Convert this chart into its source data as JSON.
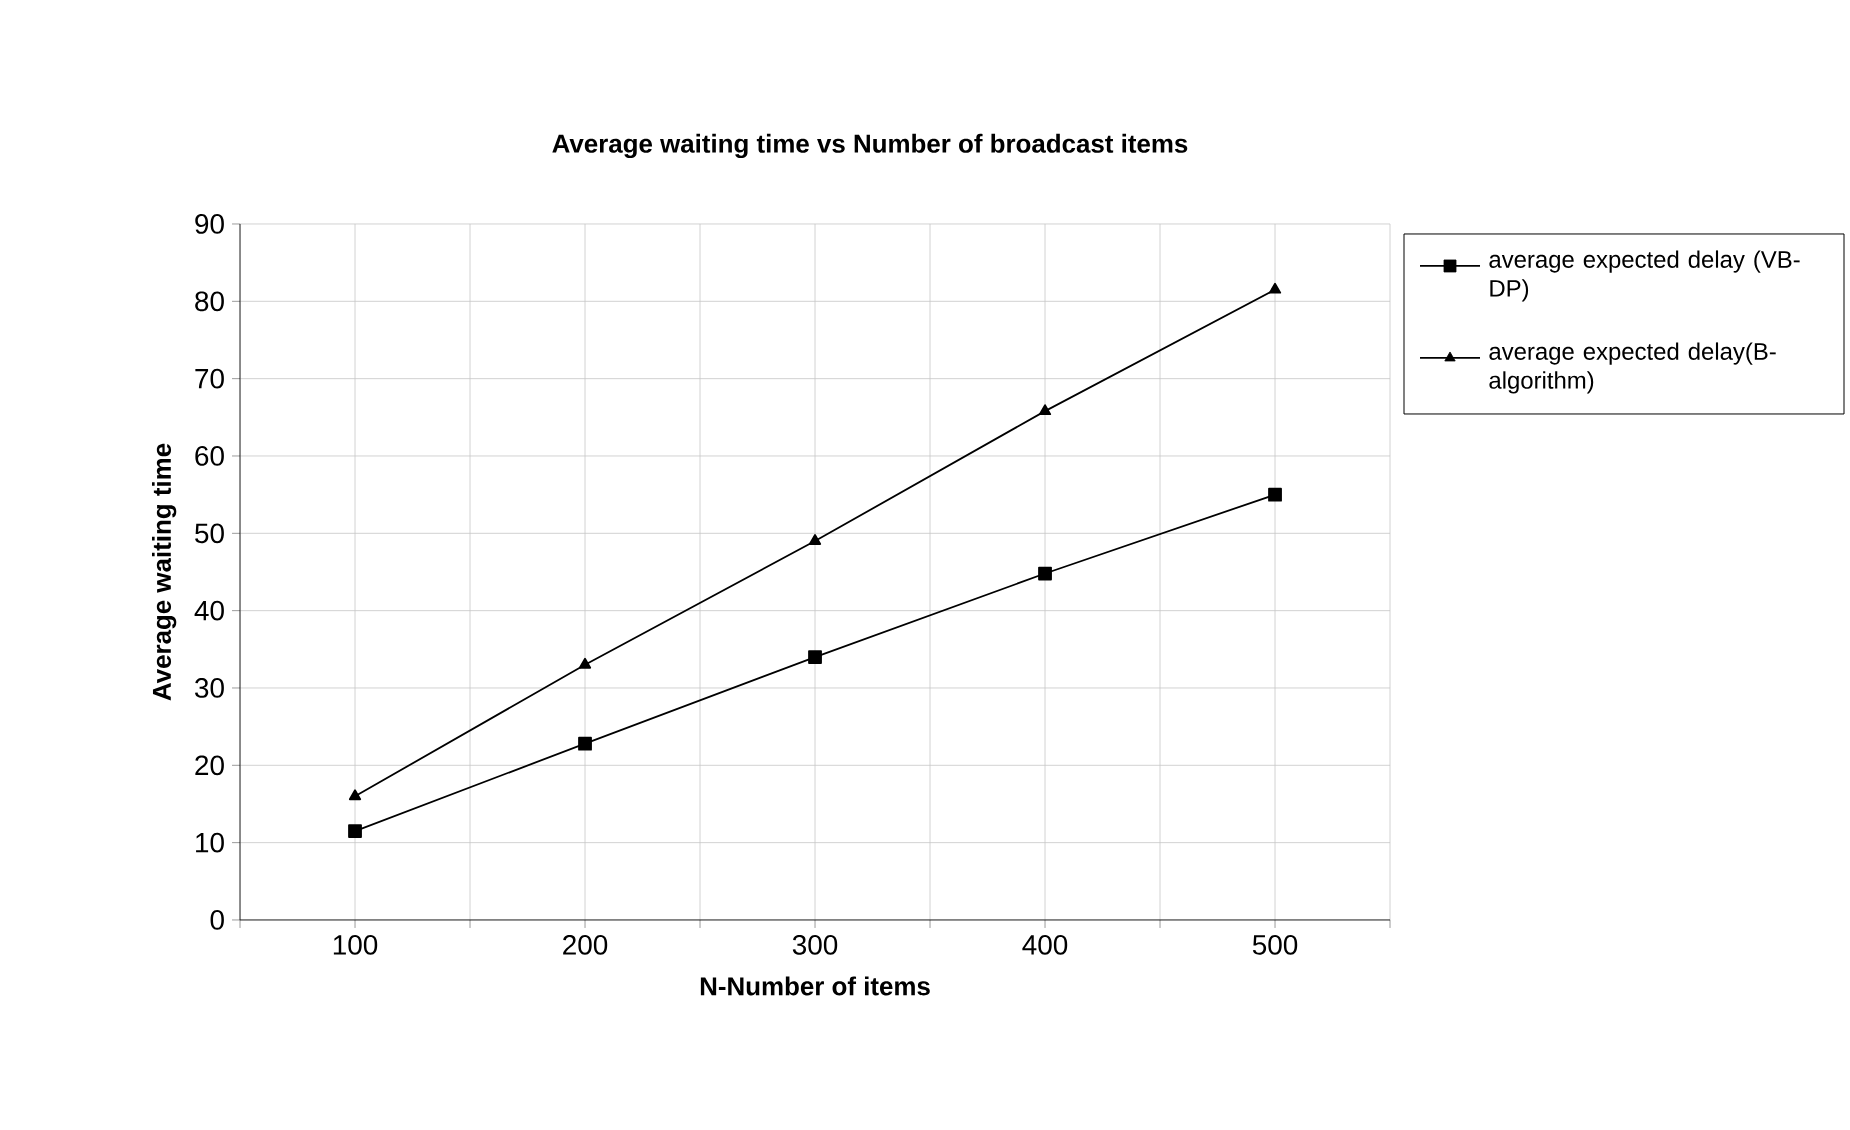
{
  "chart_data": {
    "type": "line",
    "title": "Average waiting time vs Number of broadcast items",
    "xlabel": "N-Number of items",
    "ylabel": "Average waiting time",
    "x": [
      100,
      200,
      300,
      400,
      500
    ],
    "series": [
      {
        "name": "average expected delay (VB-DP)",
        "color": "#000000",
        "marker": "square",
        "values": [
          11.5,
          22.8,
          34,
          44.8,
          55
        ]
      },
      {
        "name": "average expected delay(B-algorithm)",
        "color": "#000000",
        "marker": "triangle",
        "values": [
          16,
          33,
          49,
          65.8,
          81.5
        ]
      }
    ],
    "xlim": [
      50,
      550
    ],
    "xticks": [
      {
        "value": 50,
        "label": null
      },
      100,
      {
        "value": 150,
        "label": null
      },
      200,
      {
        "value": 250,
        "label": null
      },
      300,
      {
        "value": 350,
        "label": null
      },
      400,
      {
        "value": 450,
        "label": null
      },
      500,
      {
        "value": 550,
        "label": null
      }
    ],
    "ylim": [
      0,
      90
    ],
    "yticks": [
      0,
      10,
      20,
      30,
      40,
      50,
      60,
      70,
      80,
      90
    ],
    "grid": true,
    "legend": "right",
    "line_style": "solid"
  }
}
